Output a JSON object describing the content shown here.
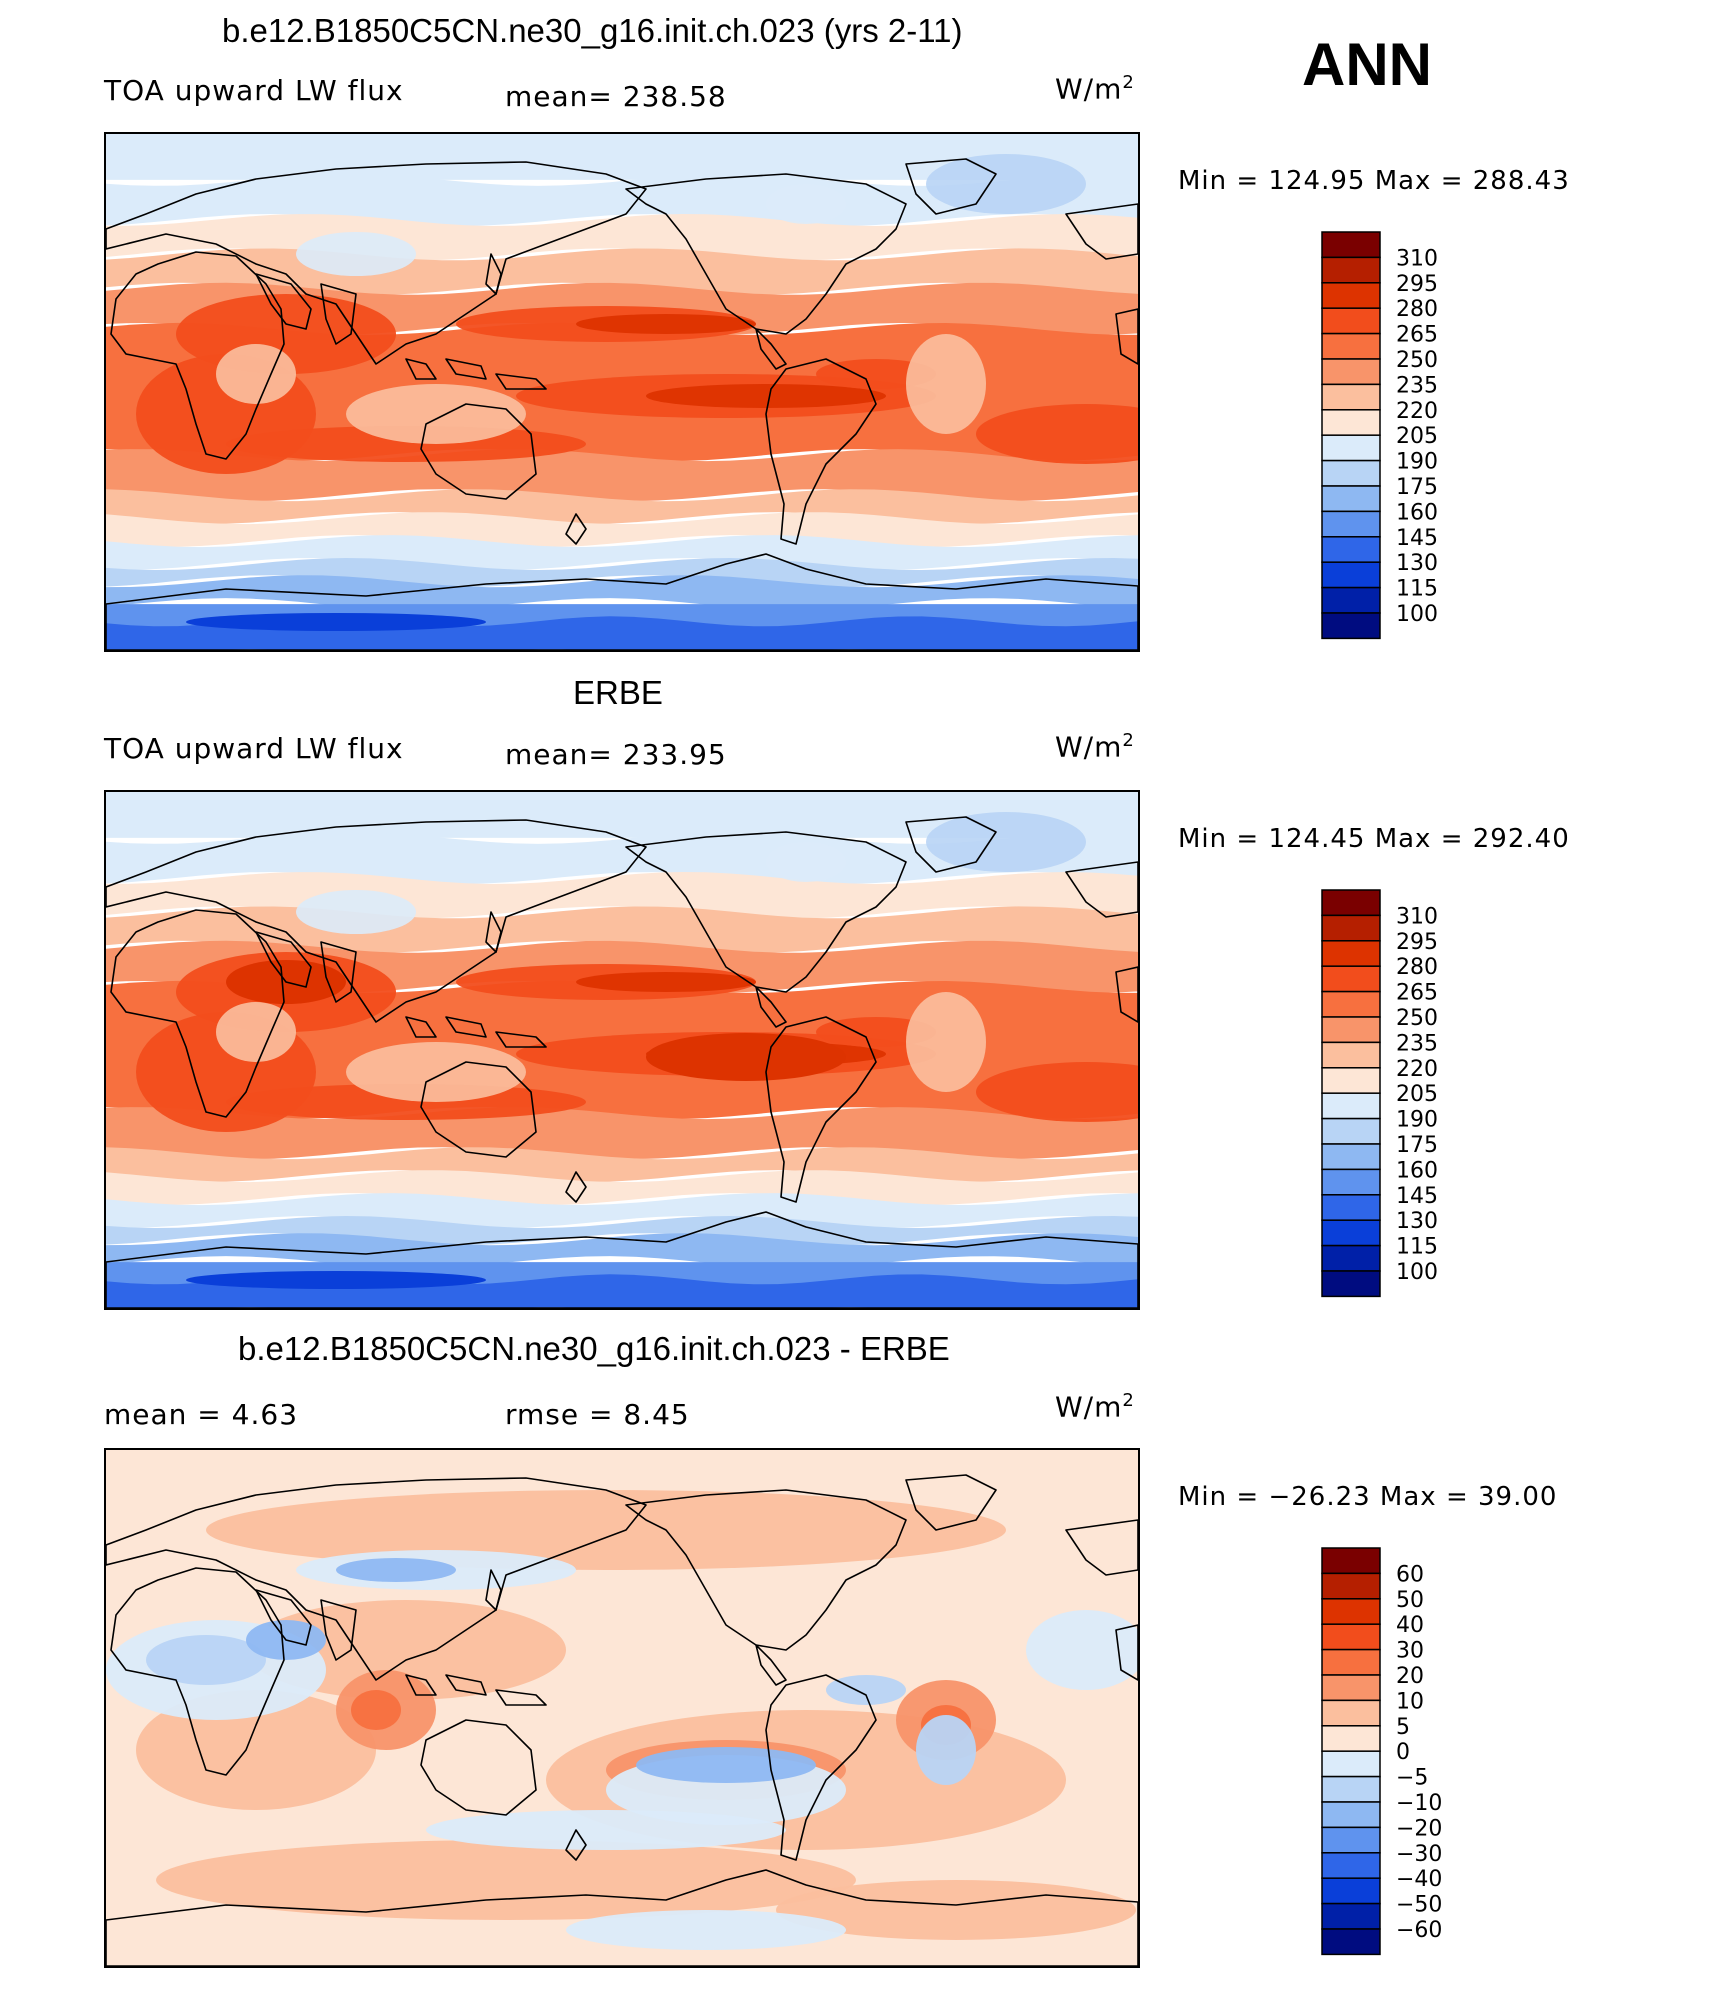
{
  "season": "ANN",
  "chart_data": [
    {
      "type": "heatmap",
      "title": "b.e12.B1850C5CN.ne30_g16.init.ch.023 (yrs 2-11)",
      "variable": "TOA upward LW flux",
      "mean_text": "mean=  238.58",
      "units": "W/m",
      "units_exp": "2",
      "minmax_text": "Min  =  124.95  Max  =  288.43",
      "min": 124.95,
      "max": 288.43,
      "colorbar_levels": [
        "310",
        "295",
        "280",
        "265",
        "250",
        "235",
        "220",
        "205",
        "190",
        "175",
        "160",
        "145",
        "130",
        "115",
        "100"
      ]
    },
    {
      "type": "heatmap",
      "title": "ERBE",
      "variable": "TOA upward LW flux",
      "mean_text": "mean=  233.95",
      "units": "W/m",
      "units_exp": "2",
      "minmax_text": "Min  =  124.45  Max  =  292.40",
      "min": 124.45,
      "max": 292.4,
      "colorbar_levels": [
        "310",
        "295",
        "280",
        "265",
        "250",
        "235",
        "220",
        "205",
        "190",
        "175",
        "160",
        "145",
        "130",
        "115",
        "100"
      ]
    },
    {
      "type": "heatmap",
      "title": "b.e12.B1850C5CN.ne30_g16.init.ch.023 - ERBE",
      "mean_text": "mean  =     4.63",
      "rmse_text": "rmse  =     8.45",
      "units": "W/m",
      "units_exp": "2",
      "minmax_text": "Min  =  −26.23  Max  =    39.00",
      "min": -26.23,
      "max": 39.0,
      "colorbar_levels": [
        "60",
        "50",
        "40",
        "30",
        "20",
        "10",
        "5",
        "0",
        "−5",
        "−10",
        "−20",
        "−30",
        "−40",
        "−50",
        "−60"
      ]
    }
  ],
  "colors": {
    "abs_scale": [
      "#7a0000",
      "#b51f00",
      "#dd3300",
      "#f24d1c",
      "#f7703f",
      "#f8946a",
      "#fbbf9e",
      "#fde6d6",
      "#dbebfa",
      "#b8d4f5",
      "#8eb8f2",
      "#5f93ee",
      "#2f66e8",
      "#0a3fd9",
      "#0020a8",
      "#000c80"
    ],
    "diff_scale": [
      "#7a0000",
      "#b51f00",
      "#dd3300",
      "#f24d1c",
      "#f7703f",
      "#f8946a",
      "#fbbf9e",
      "#fde6d6",
      "#dbebfa",
      "#b8d4f5",
      "#8eb8f2",
      "#5f93ee",
      "#2f66e8",
      "#0a3fd9",
      "#0020a8",
      "#000c80"
    ]
  }
}
